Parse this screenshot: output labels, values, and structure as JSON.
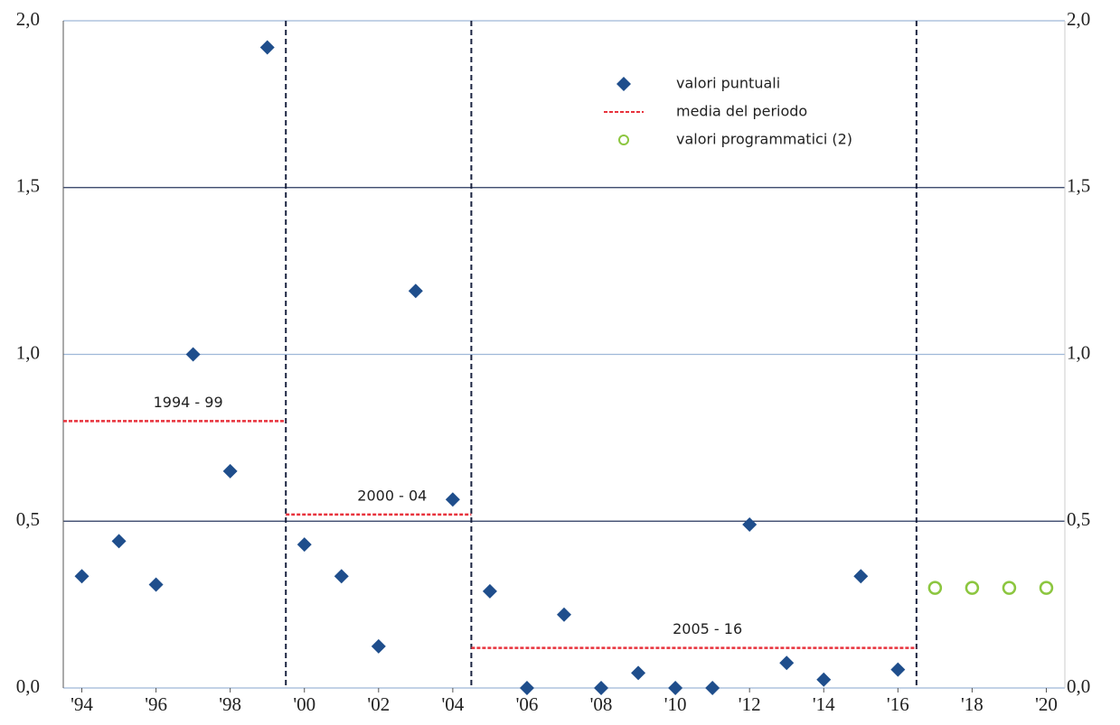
{
  "chart_data": {
    "type": "scatter",
    "xlim": [
      1993.5,
      2020.5
    ],
    "ylim": [
      0,
      2
    ],
    "xticks": [
      {
        "value": 1994,
        "label": "'94"
      },
      {
        "value": 1996,
        "label": "'96"
      },
      {
        "value": 1998,
        "label": "'98"
      },
      {
        "value": 2000,
        "label": "'00"
      },
      {
        "value": 2002,
        "label": "'02"
      },
      {
        "value": 2004,
        "label": "'04"
      },
      {
        "value": 2006,
        "label": "'06"
      },
      {
        "value": 2008,
        "label": "'08"
      },
      {
        "value": 2010,
        "label": "'10"
      },
      {
        "value": 2012,
        "label": "'12"
      },
      {
        "value": 2014,
        "label": "'14"
      },
      {
        "value": 2016,
        "label": "'16"
      },
      {
        "value": 2018,
        "label": "'18"
      },
      {
        "value": 2020,
        "label": "'20"
      }
    ],
    "yticks": [
      {
        "value": 0,
        "label": "0,0"
      },
      {
        "value": 0.5,
        "label": "0,5"
      },
      {
        "value": 1,
        "label": "1,0"
      },
      {
        "value": 1.5,
        "label": "1,5"
      },
      {
        "value": 2,
        "label": "2,0"
      }
    ],
    "grid": true,
    "period_breaks": [
      1999.5,
      2004.5,
      2016.5
    ],
    "series": [
      {
        "name": "valori puntuali",
        "color": "#1f4e8c",
        "marker": "diamond",
        "x": [
          1994,
          1995,
          1996,
          1997,
          1998,
          1999,
          2000,
          2001,
          2002,
          2003,
          2004,
          2005,
          2006,
          2007,
          2008,
          2009,
          2010,
          2011,
          2012,
          2013,
          2014,
          2015,
          2016
        ],
        "values": [
          0.335,
          0.44,
          0.31,
          1.0,
          0.65,
          1.92,
          0.43,
          0.335,
          0.125,
          1.19,
          0.565,
          0.29,
          0.0,
          0.22,
          0.0,
          0.045,
          0.0,
          0.0,
          0.49,
          0.075,
          0.025,
          0.335,
          0.055
        ]
      },
      {
        "name": "media del periodo",
        "color": "#e8323c",
        "marker": "dashed",
        "periods": [
          {
            "label": "1994 - 99",
            "start": 1993.5,
            "end": 1999.5,
            "value": 0.8
          },
          {
            "label": "2000 - 04",
            "start": 1999.5,
            "end": 2004.5,
            "value": 0.52
          },
          {
            "label": "2005 - 16",
            "start": 2004.5,
            "end": 2016.5,
            "value": 0.12
          }
        ]
      },
      {
        "name": "valori programmatici (2)",
        "color": "#8cc63f",
        "marker": "circle",
        "x": [
          2017,
          2018,
          2019,
          2020
        ],
        "values": [
          0.3,
          0.3,
          0.3,
          0.3
        ]
      }
    ]
  }
}
